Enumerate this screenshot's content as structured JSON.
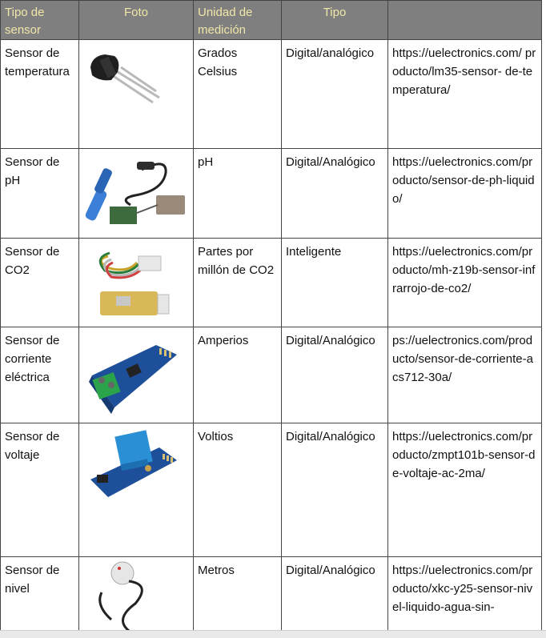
{
  "headers": [
    "Tipo de sensor",
    "Foto",
    "Unidad de medición",
    "Tipo",
    ""
  ],
  "rows": [
    {
      "sensor": "Sensor de temperatura",
      "photo": "temperature-sensor-lm35",
      "unit": "Grados Celsius",
      "type": "Digital/analógico",
      "url": "https://uelectronics.com/ producto/lm35-sensor- de-temperatura/"
    },
    {
      "sensor": "Sensor de pH",
      "photo": "ph-sensor-probe",
      "unit": "pH",
      "type": "Digital/Analógico",
      "url": "https://uelectronics.com/producto/sensor-de-ph-liquido/"
    },
    {
      "sensor": "Sensor de CO2",
      "photo": "co2-sensor-mhz19b",
      "unit": "Partes por millón de CO2",
      "type": "Inteligente",
      "url": "https://uelectronics.com/producto/mh-z19b-sensor-infrarrojo-de-co2/"
    },
    {
      "sensor": "Sensor de corriente eléctrica",
      "photo": "current-sensor-acs712",
      "unit": "Amperios",
      "type": "Digital/Analógico",
      "url": "ps://uelectronics.com/producto/sensor-de-corriente-acs712-30a/"
    },
    {
      "sensor": "Sensor de voltaje",
      "photo": "voltage-sensor-zmpt101b",
      "unit": "Voltios",
      "type": "Digital/Analógico",
      "url": "https://uelectronics.com/producto/zmpt101b-sensor-de-voltaje-ac-2ma/"
    },
    {
      "sensor": "Sensor de nivel",
      "photo": "level-sensor-xkc-y25",
      "unit": "Metros",
      "type": "Digital/Analógico",
      "url": "https://uelectronics.com/producto/xkc-y25-sensor-nivel-liquido-agua-sin-"
    }
  ]
}
